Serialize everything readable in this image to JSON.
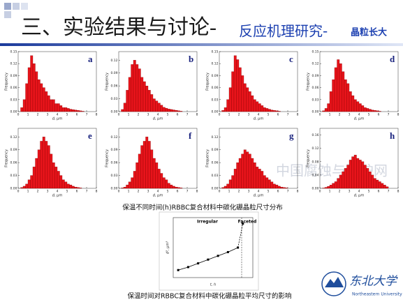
{
  "slide": {
    "title": "三、实验结果与讨论-",
    "subtitle": "反应机理研究-",
    "subtitle_small": "晶粒长大",
    "caption_1": "保温不同时间(h)RBBC复合材料中碳化硼晶粒尺寸分布",
    "caption_2": "保温时间对RBBC复合材料中碳化硼晶粒平均尺寸的影响",
    "watermark": "中国腐蚀与防护网",
    "logo_name": "东北大学",
    "logo_text": "Northeastern University"
  },
  "chart_data": [
    {
      "type": "histogram",
      "annotation": "a",
      "x_label": "d, μm",
      "y_label": "Frequency",
      "color": "#e8141b",
      "bins": [
        0.25,
        0.5,
        0.75,
        1,
        1.25,
        1.5,
        1.75,
        2,
        2.25,
        2.5,
        2.75,
        3,
        3.25,
        3.5,
        3.75,
        4,
        4.25,
        4.5,
        4.75,
        5,
        5.25,
        5.5,
        5.75,
        6,
        6.25,
        6.5,
        6.75,
        7
      ],
      "values": [
        0.01,
        0.03,
        0.07,
        0.11,
        0.14,
        0.12,
        0.1,
        0.08,
        0.07,
        0.06,
        0.05,
        0.04,
        0.03,
        0.03,
        0.02,
        0.02,
        0.015,
        0.01,
        0.01,
        0.008,
        0.006,
        0.005,
        0.004,
        0.003,
        0.002,
        0.001,
        0
      ],
      "xlim": [
        0,
        8
      ],
      "xticks": [
        0,
        1,
        2,
        3,
        4,
        5,
        6,
        7,
        8
      ],
      "ylim": [
        0,
        0.15
      ],
      "yticks": [
        {
          "value": 0,
          "label": "0.00"
        },
        0.03,
        0.06,
        0.09,
        0.12,
        0.15
      ]
    },
    {
      "type": "histogram",
      "annotation": "b",
      "x_label": "d, μm",
      "y_label": "Frequency",
      "color": "#e8141b",
      "bins": [
        0.25,
        0.5,
        0.75,
        1,
        1.25,
        1.5,
        1.75,
        2,
        2.25,
        2.5,
        2.75,
        3,
        3.25,
        3.5,
        3.75,
        4,
        4.25,
        4.5,
        4.75,
        5,
        5.25,
        5.5,
        5.75,
        6,
        6.25,
        6.5,
        6.75,
        7
      ],
      "values": [
        0.005,
        0.02,
        0.05,
        0.08,
        0.11,
        0.12,
        0.11,
        0.1,
        0.08,
        0.07,
        0.06,
        0.05,
        0.04,
        0.03,
        0.025,
        0.02,
        0.015,
        0.01,
        0.008,
        0.006,
        0.005,
        0.004,
        0.003,
        0.002,
        0.001,
        0,
        0
      ],
      "xlim": [
        0,
        8
      ],
      "xticks": [
        0,
        1,
        2,
        3,
        4,
        5,
        6,
        7,
        8
      ],
      "ylim": [
        0,
        0.14
      ],
      "yticks": [
        {
          "value": 0,
          "label": "0.00"
        },
        0.03,
        0.06,
        0.09,
        0.12
      ]
    },
    {
      "type": "histogram",
      "annotation": "c",
      "x_label": "d, μm",
      "y_label": "Frequency",
      "color": "#e8141b",
      "bins": [
        0.25,
        0.5,
        0.75,
        1,
        1.25,
        1.5,
        1.75,
        2,
        2.25,
        2.5,
        2.75,
        3,
        3.25,
        3.5,
        3.75,
        4,
        4.25,
        4.5,
        4.75,
        5,
        5.25,
        5.5,
        5.75,
        6,
        6.25,
        6.5,
        6.75,
        7
      ],
      "values": [
        0.003,
        0.01,
        0.03,
        0.06,
        0.1,
        0.14,
        0.13,
        0.11,
        0.09,
        0.07,
        0.06,
        0.05,
        0.04,
        0.03,
        0.025,
        0.02,
        0.015,
        0.01,
        0.008,
        0.006,
        0.004,
        0.003,
        0.002,
        0.001,
        0,
        0,
        0
      ],
      "xlim": [
        0,
        8
      ],
      "xticks": [
        0,
        1,
        2,
        3,
        4,
        5,
        6,
        7,
        8
      ],
      "ylim": [
        0,
        0.15
      ],
      "yticks": [
        {
          "value": 0,
          "label": "0.00"
        },
        0.03,
        0.06,
        0.09,
        0.12,
        0.15
      ]
    },
    {
      "type": "histogram",
      "annotation": "d",
      "x_label": "d, μm",
      "y_label": "Frequency",
      "color": "#e8141b",
      "bins": [
        0.25,
        0.5,
        0.75,
        1,
        1.25,
        1.5,
        1.75,
        2,
        2.25,
        2.5,
        2.75,
        3,
        3.25,
        3.5,
        3.75,
        4,
        4.25,
        4.5,
        4.75,
        5,
        5.25,
        5.5,
        5.75,
        6,
        6.25,
        6.5,
        6.75,
        7
      ],
      "values": [
        0.002,
        0.008,
        0.02,
        0.05,
        0.08,
        0.11,
        0.13,
        0.12,
        0.1,
        0.08,
        0.07,
        0.05,
        0.04,
        0.03,
        0.025,
        0.02,
        0.015,
        0.01,
        0.008,
        0.006,
        0.004,
        0.003,
        0.002,
        0.001,
        0,
        0,
        0
      ],
      "xlim": [
        0,
        8
      ],
      "xticks": [
        0,
        1,
        2,
        3,
        4,
        5,
        6,
        7,
        8
      ],
      "ylim": [
        0,
        0.15
      ],
      "yticks": [
        {
          "value": 0,
          "label": "0.00"
        },
        0.03,
        0.06,
        0.09,
        0.12,
        0.15
      ]
    },
    {
      "type": "histogram",
      "annotation": "e",
      "x_label": "d, μm",
      "y_label": "Frequency",
      "color": "#e8141b",
      "bins": [
        0.25,
        0.5,
        0.75,
        1,
        1.25,
        1.5,
        1.75,
        2,
        2.25,
        2.5,
        2.75,
        3,
        3.25,
        3.5,
        3.75,
        4,
        4.25,
        4.5,
        4.75,
        5,
        5.25,
        5.5,
        5.75,
        6,
        6.25,
        6.5,
        6.75,
        7
      ],
      "values": [
        0.002,
        0.005,
        0.01,
        0.02,
        0.03,
        0.05,
        0.07,
        0.09,
        0.11,
        0.12,
        0.11,
        0.1,
        0.08,
        0.06,
        0.05,
        0.04,
        0.03,
        0.02,
        0.015,
        0.01,
        0.008,
        0.005,
        0.003,
        0.002,
        0.001,
        0,
        0
      ],
      "xlim": [
        0,
        8
      ],
      "xticks": [
        0,
        1,
        2,
        3,
        4,
        5,
        6,
        7,
        8
      ],
      "ylim": [
        0,
        0.14
      ],
      "yticks": [
        {
          "value": 0,
          "label": "0.00"
        },
        0.03,
        0.06,
        0.09,
        0.12
      ]
    },
    {
      "type": "histogram",
      "annotation": "f",
      "x_label": "d, μm",
      "y_label": "Frequency",
      "color": "#e8141b",
      "bins": [
        0.25,
        0.5,
        0.75,
        1,
        1.25,
        1.5,
        1.75,
        2,
        2.25,
        2.5,
        2.75,
        3,
        3.25,
        3.5,
        3.75,
        4,
        4.25,
        4.5,
        4.75,
        5,
        5.25,
        5.5,
        5.75,
        6,
        6.25,
        6.5,
        6.75,
        7
      ],
      "values": [
        0.001,
        0.003,
        0.008,
        0.015,
        0.025,
        0.04,
        0.06,
        0.08,
        0.1,
        0.11,
        0.12,
        0.11,
        0.09,
        0.07,
        0.06,
        0.045,
        0.035,
        0.025,
        0.02,
        0.012,
        0.008,
        0.005,
        0.003,
        0.002,
        0.001,
        0,
        0
      ],
      "xlim": [
        0,
        8
      ],
      "xticks": [
        0,
        1,
        2,
        3,
        4,
        5,
        6,
        7,
        8
      ],
      "ylim": [
        0,
        0.14
      ],
      "yticks": [
        {
          "value": 0,
          "label": "0.00"
        },
        0.03,
        0.06,
        0.09,
        0.12
      ]
    },
    {
      "type": "histogram",
      "annotation": "g",
      "x_label": "d, μm",
      "y_label": "Frequency",
      "color": "#e8141b",
      "bins": [
        0.25,
        0.5,
        0.75,
        1,
        1.25,
        1.5,
        1.75,
        2,
        2.25,
        2.5,
        2.75,
        3,
        3.25,
        3.5,
        3.75,
        4,
        4.25,
        4.5,
        4.75,
        5,
        5.25,
        5.5,
        5.75,
        6,
        6.25,
        6.5,
        6.75,
        7
      ],
      "values": [
        0.002,
        0.005,
        0.01,
        0.02,
        0.03,
        0.045,
        0.06,
        0.07,
        0.08,
        0.09,
        0.085,
        0.08,
        0.07,
        0.06,
        0.05,
        0.045,
        0.04,
        0.03,
        0.025,
        0.02,
        0.015,
        0.01,
        0.008,
        0.005,
        0.003,
        0.002,
        0.001
      ],
      "xlim": [
        0,
        8
      ],
      "xticks": [
        0,
        1,
        2,
        3,
        4,
        5,
        6,
        7,
        8
      ],
      "ylim": [
        0,
        0.14
      ],
      "yticks": [
        {
          "value": 0,
          "label": "0.00"
        },
        0.03,
        0.06,
        0.09,
        0.12
      ]
    },
    {
      "type": "histogram",
      "annotation": "h",
      "x_label": "d, μm",
      "y_label": "Frequency",
      "color": "#e8141b",
      "bins": [
        0.25,
        0.5,
        0.75,
        1,
        1.25,
        1.5,
        1.75,
        2,
        2.25,
        2.5,
        2.75,
        3,
        3.25,
        3.5,
        3.75,
        4,
        4.25,
        4.5,
        4.75,
        5,
        5.25,
        5.5,
        5.75,
        6,
        6.25,
        6.5,
        6.75,
        7
      ],
      "values": [
        0.001,
        0.003,
        0.006,
        0.01,
        0.015,
        0.02,
        0.03,
        0.04,
        0.05,
        0.06,
        0.07,
        0.085,
        0.095,
        0.1,
        0.09,
        0.085,
        0.08,
        0.07,
        0.06,
        0.05,
        0.04,
        0.03,
        0.025,
        0.02,
        0.015,
        0.01,
        0.005
      ],
      "xlim": [
        0,
        8
      ],
      "xticks": [
        0,
        1,
        2,
        3,
        4,
        5,
        6,
        7,
        8
      ],
      "ylim": [
        0,
        0.18
      ],
      "yticks": [
        {
          "value": 0,
          "label": "0.00"
        },
        0.04,
        0.08,
        0.12,
        0.16
      ]
    },
    {
      "type": "line",
      "x_label": "t, h",
      "y_label": "d³, μm³",
      "annotations": [
        "Irregular",
        "Faceted"
      ],
      "color": "#000000",
      "x": [
        0.25,
        0.75,
        1.25,
        1.75,
        2.25,
        2.75,
        3.25,
        3.5
      ],
      "values": [
        5,
        7,
        9.5,
        12,
        14.5,
        17,
        20,
        36
      ],
      "xlim": [
        0,
        4
      ],
      "ylim": [
        0,
        40
      ]
    }
  ]
}
